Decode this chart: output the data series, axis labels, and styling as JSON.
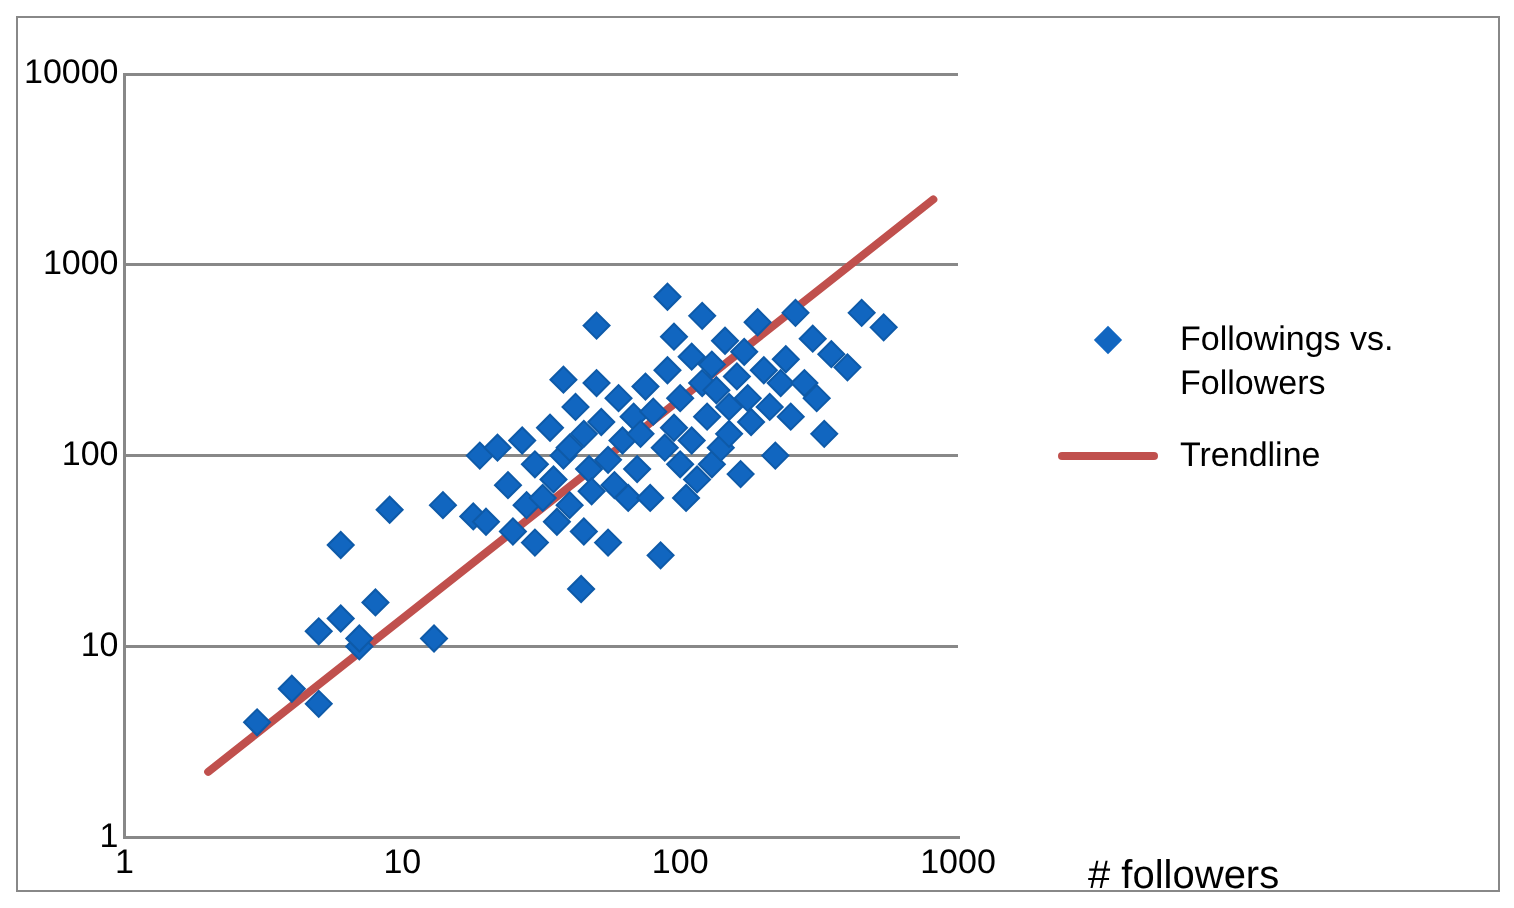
{
  "chart_data": {
    "type": "scatter",
    "xlabel": "# followers",
    "log": "xy",
    "xlim": [
      1,
      1000
    ],
    "xticks": [
      1,
      10,
      100,
      1000
    ],
    "ylim": [
      1,
      10000
    ],
    "yticks": [
      1,
      10,
      100,
      1000,
      10000
    ],
    "grid": "y",
    "legend": "right",
    "series": [
      {
        "name": "Followings vs. Followers",
        "color": "#1166c0",
        "marker": "diamond",
        "x": [
          3,
          4,
          5,
          5,
          6,
          6,
          7,
          7,
          8,
          9,
          13,
          14,
          18,
          19,
          20,
          22,
          24,
          25,
          27,
          28,
          30,
          30,
          32,
          34,
          35,
          36,
          38,
          38,
          40,
          40,
          42,
          44,
          45,
          45,
          47,
          48,
          50,
          50,
          52,
          55,
          55,
          58,
          60,
          62,
          65,
          68,
          70,
          72,
          75,
          78,
          80,
          85,
          88,
          90,
          90,
          95,
          95,
          100,
          100,
          105,
          110,
          110,
          115,
          120,
          120,
          125,
          130,
          130,
          135,
          140,
          145,
          150,
          150,
          160,
          165,
          170,
          175,
          180,
          190,
          200,
          210,
          220,
          230,
          240,
          250,
          260,
          280,
          300,
          310,
          330,
          350,
          400,
          450,
          540
        ],
        "values": [
          4,
          6,
          5,
          12,
          14,
          34,
          10,
          11,
          17,
          52,
          11,
          55,
          48,
          100,
          45,
          110,
          70,
          40,
          120,
          55,
          90,
          35,
          60,
          140,
          75,
          45,
          250,
          100,
          110,
          55,
          180,
          20,
          40,
          130,
          85,
          65,
          480,
          240,
          150,
          35,
          95,
          70,
          200,
          120,
          60,
          160,
          85,
          130,
          230,
          60,
          170,
          30,
          110,
          680,
          280,
          420,
          140,
          90,
          200,
          60,
          330,
          120,
          75,
          540,
          240,
          160,
          90,
          300,
          220,
          110,
          400,
          180,
          130,
          260,
          80,
          350,
          200,
          150,
          500,
          280,
          180,
          100,
          240,
          320,
          160,
          560,
          240,
          410,
          200,
          130,
          340,
          290,
          560,
          470
        ]
      },
      {
        "name": "Trendline",
        "type": "line",
        "color": "#c0504d",
        "marker": "none",
        "x": [
          2,
          815
        ],
        "values": [
          2.2,
          2200
        ]
      }
    ]
  }
}
